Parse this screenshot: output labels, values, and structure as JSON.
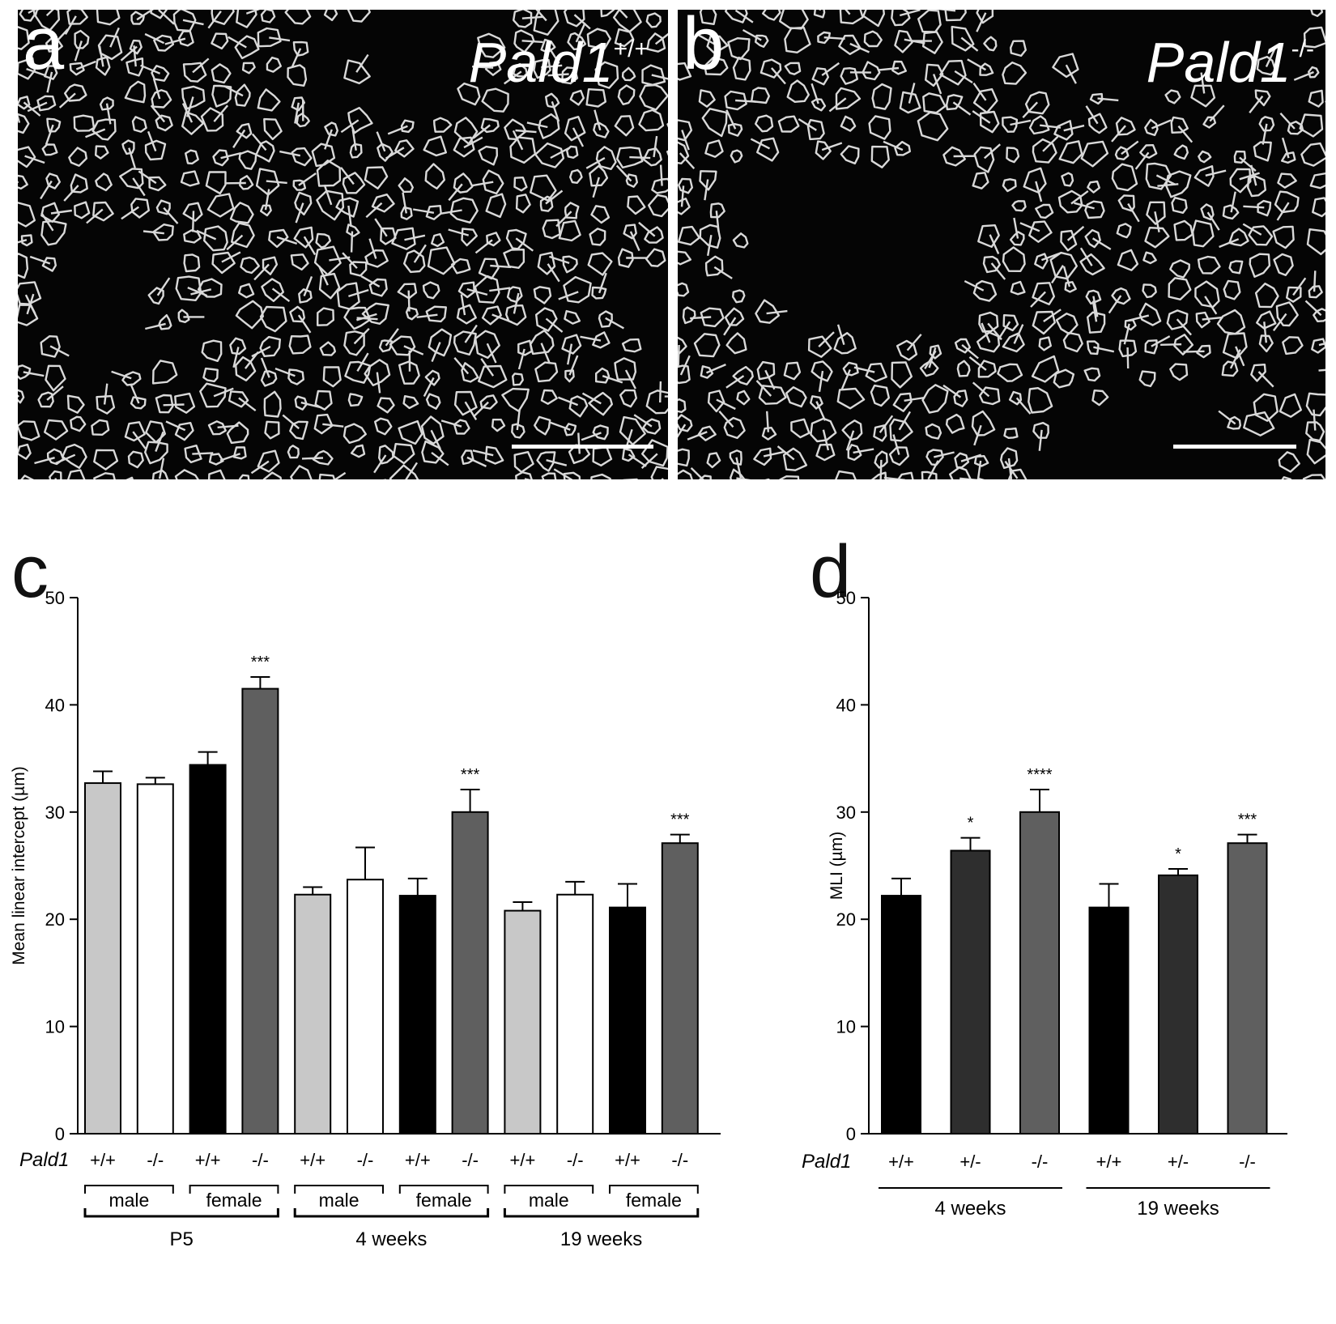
{
  "panels": {
    "a": {
      "letter": "a",
      "genotype_main": "Pald1",
      "genotype_sup": "+/+"
    },
    "b": {
      "letter": "b",
      "genotype_main": "Pald1",
      "genotype_sup": "-/-"
    }
  },
  "colors": {
    "light_gray": "#c8c8c8",
    "white": "#ffffff",
    "black": "#000000",
    "dark_gray": "#5f5f5f",
    "darker_gray": "#2e2e2e",
    "micrograph_bg": "#050505",
    "tissue": "#d9d9d9"
  },
  "chart_data": [
    {
      "panel_letter": "c",
      "type": "bar",
      "ylabel": "Mean linear intercept (µm)",
      "ylim": [
        0,
        50
      ],
      "yticks": [
        0,
        10,
        20,
        30,
        40,
        50
      ],
      "row_label": "Pald1",
      "genotypes": [
        "+/+",
        "-/-",
        "+/+",
        "-/-",
        "+/+",
        "-/-",
        "+/+",
        "-/-",
        "+/+",
        "-/-",
        "+/+",
        "-/-"
      ],
      "values": [
        32.7,
        32.6,
        34.4,
        41.5,
        22.3,
        23.7,
        22.2,
        30.0,
        20.8,
        22.3,
        21.1,
        27.1
      ],
      "errors": [
        1.1,
        0.6,
        1.2,
        1.1,
        0.7,
        3.0,
        1.6,
        2.1,
        0.8,
        1.2,
        2.2,
        0.8
      ],
      "fill_colors": [
        "#c8c8c8",
        "#ffffff",
        "#000000",
        "#5f5f5f",
        "#c8c8c8",
        "#ffffff",
        "#000000",
        "#5f5f5f",
        "#c8c8c8",
        "#ffffff",
        "#000000",
        "#5f5f5f"
      ],
      "significance": [
        "",
        "",
        "",
        "***",
        "",
        "",
        "",
        "***",
        "",
        "",
        "",
        "***"
      ],
      "sex_groups": [
        "male",
        "female",
        "male",
        "female",
        "male",
        "female"
      ],
      "age_groups": [
        "P5",
        "4 weeks",
        "19 weeks"
      ]
    },
    {
      "panel_letter": "d",
      "type": "bar",
      "ylabel": "MLI (µm)",
      "ylim": [
        0,
        50
      ],
      "yticks": [
        0,
        10,
        20,
        30,
        40,
        50
      ],
      "row_label": "Pald1",
      "genotypes": [
        "+/+",
        "+/-",
        "-/-",
        "+/+",
        "+/-",
        "-/-"
      ],
      "values": [
        22.2,
        26.4,
        30.0,
        21.1,
        24.1,
        27.1
      ],
      "errors": [
        1.6,
        1.2,
        2.1,
        2.2,
        0.6,
        0.8
      ],
      "fill_colors": [
        "#000000",
        "#2e2e2e",
        "#5f5f5f",
        "#000000",
        "#2e2e2e",
        "#5f5f5f"
      ],
      "significance": [
        "",
        "*",
        "****",
        "",
        "*",
        "***"
      ],
      "age_groups": [
        "4 weeks",
        "19 weeks"
      ]
    }
  ]
}
